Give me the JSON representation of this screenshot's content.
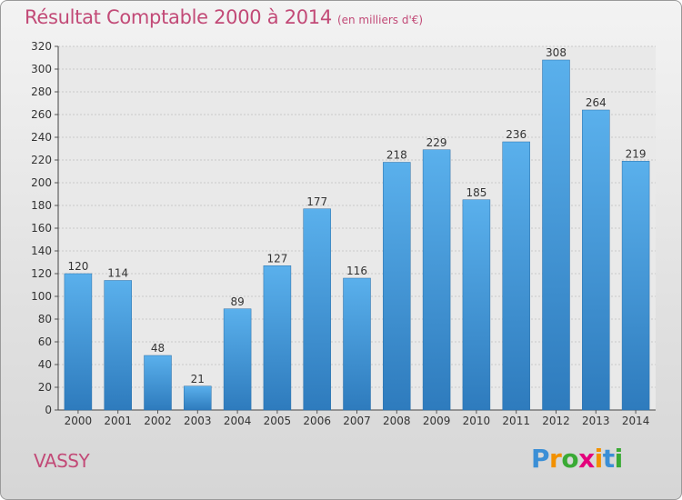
{
  "header": {
    "title": "Résultat Comptable 2000 à 2014",
    "unit": "(en milliers d'€)"
  },
  "footer": {
    "place": "VASSY",
    "logo_letters": [
      "P",
      "r",
      "o",
      "x",
      "i",
      "t",
      "i"
    ],
    "logo_colors": [
      "#3b8fd6",
      "#f29100",
      "#3aaa35",
      "#e4007c",
      "#f29100",
      "#3b8fd6",
      "#3aaa35"
    ]
  },
  "colors": {
    "title": "#c24a77",
    "bar_top": "#5ab0ec",
    "bar_bottom": "#2e7bbd"
  },
  "chart_data": {
    "type": "bar",
    "title": "Résultat Comptable 2000 à 2014",
    "subtitle": "(en milliers d'€)",
    "xlabel": "",
    "ylabel": "",
    "categories": [
      "2000",
      "2001",
      "2002",
      "2003",
      "2004",
      "2005",
      "2006",
      "2007",
      "2008",
      "2009",
      "2010",
      "2011",
      "2012",
      "2013",
      "2014"
    ],
    "values": [
      120,
      114,
      48,
      21,
      89,
      127,
      177,
      116,
      218,
      229,
      185,
      236,
      308,
      264,
      219
    ],
    "ylim": [
      0,
      320
    ],
    "yticks": [
      0,
      20,
      40,
      60,
      80,
      100,
      120,
      140,
      160,
      180,
      200,
      220,
      240,
      260,
      280,
      300,
      320
    ],
    "grid": true,
    "legend": "none"
  }
}
